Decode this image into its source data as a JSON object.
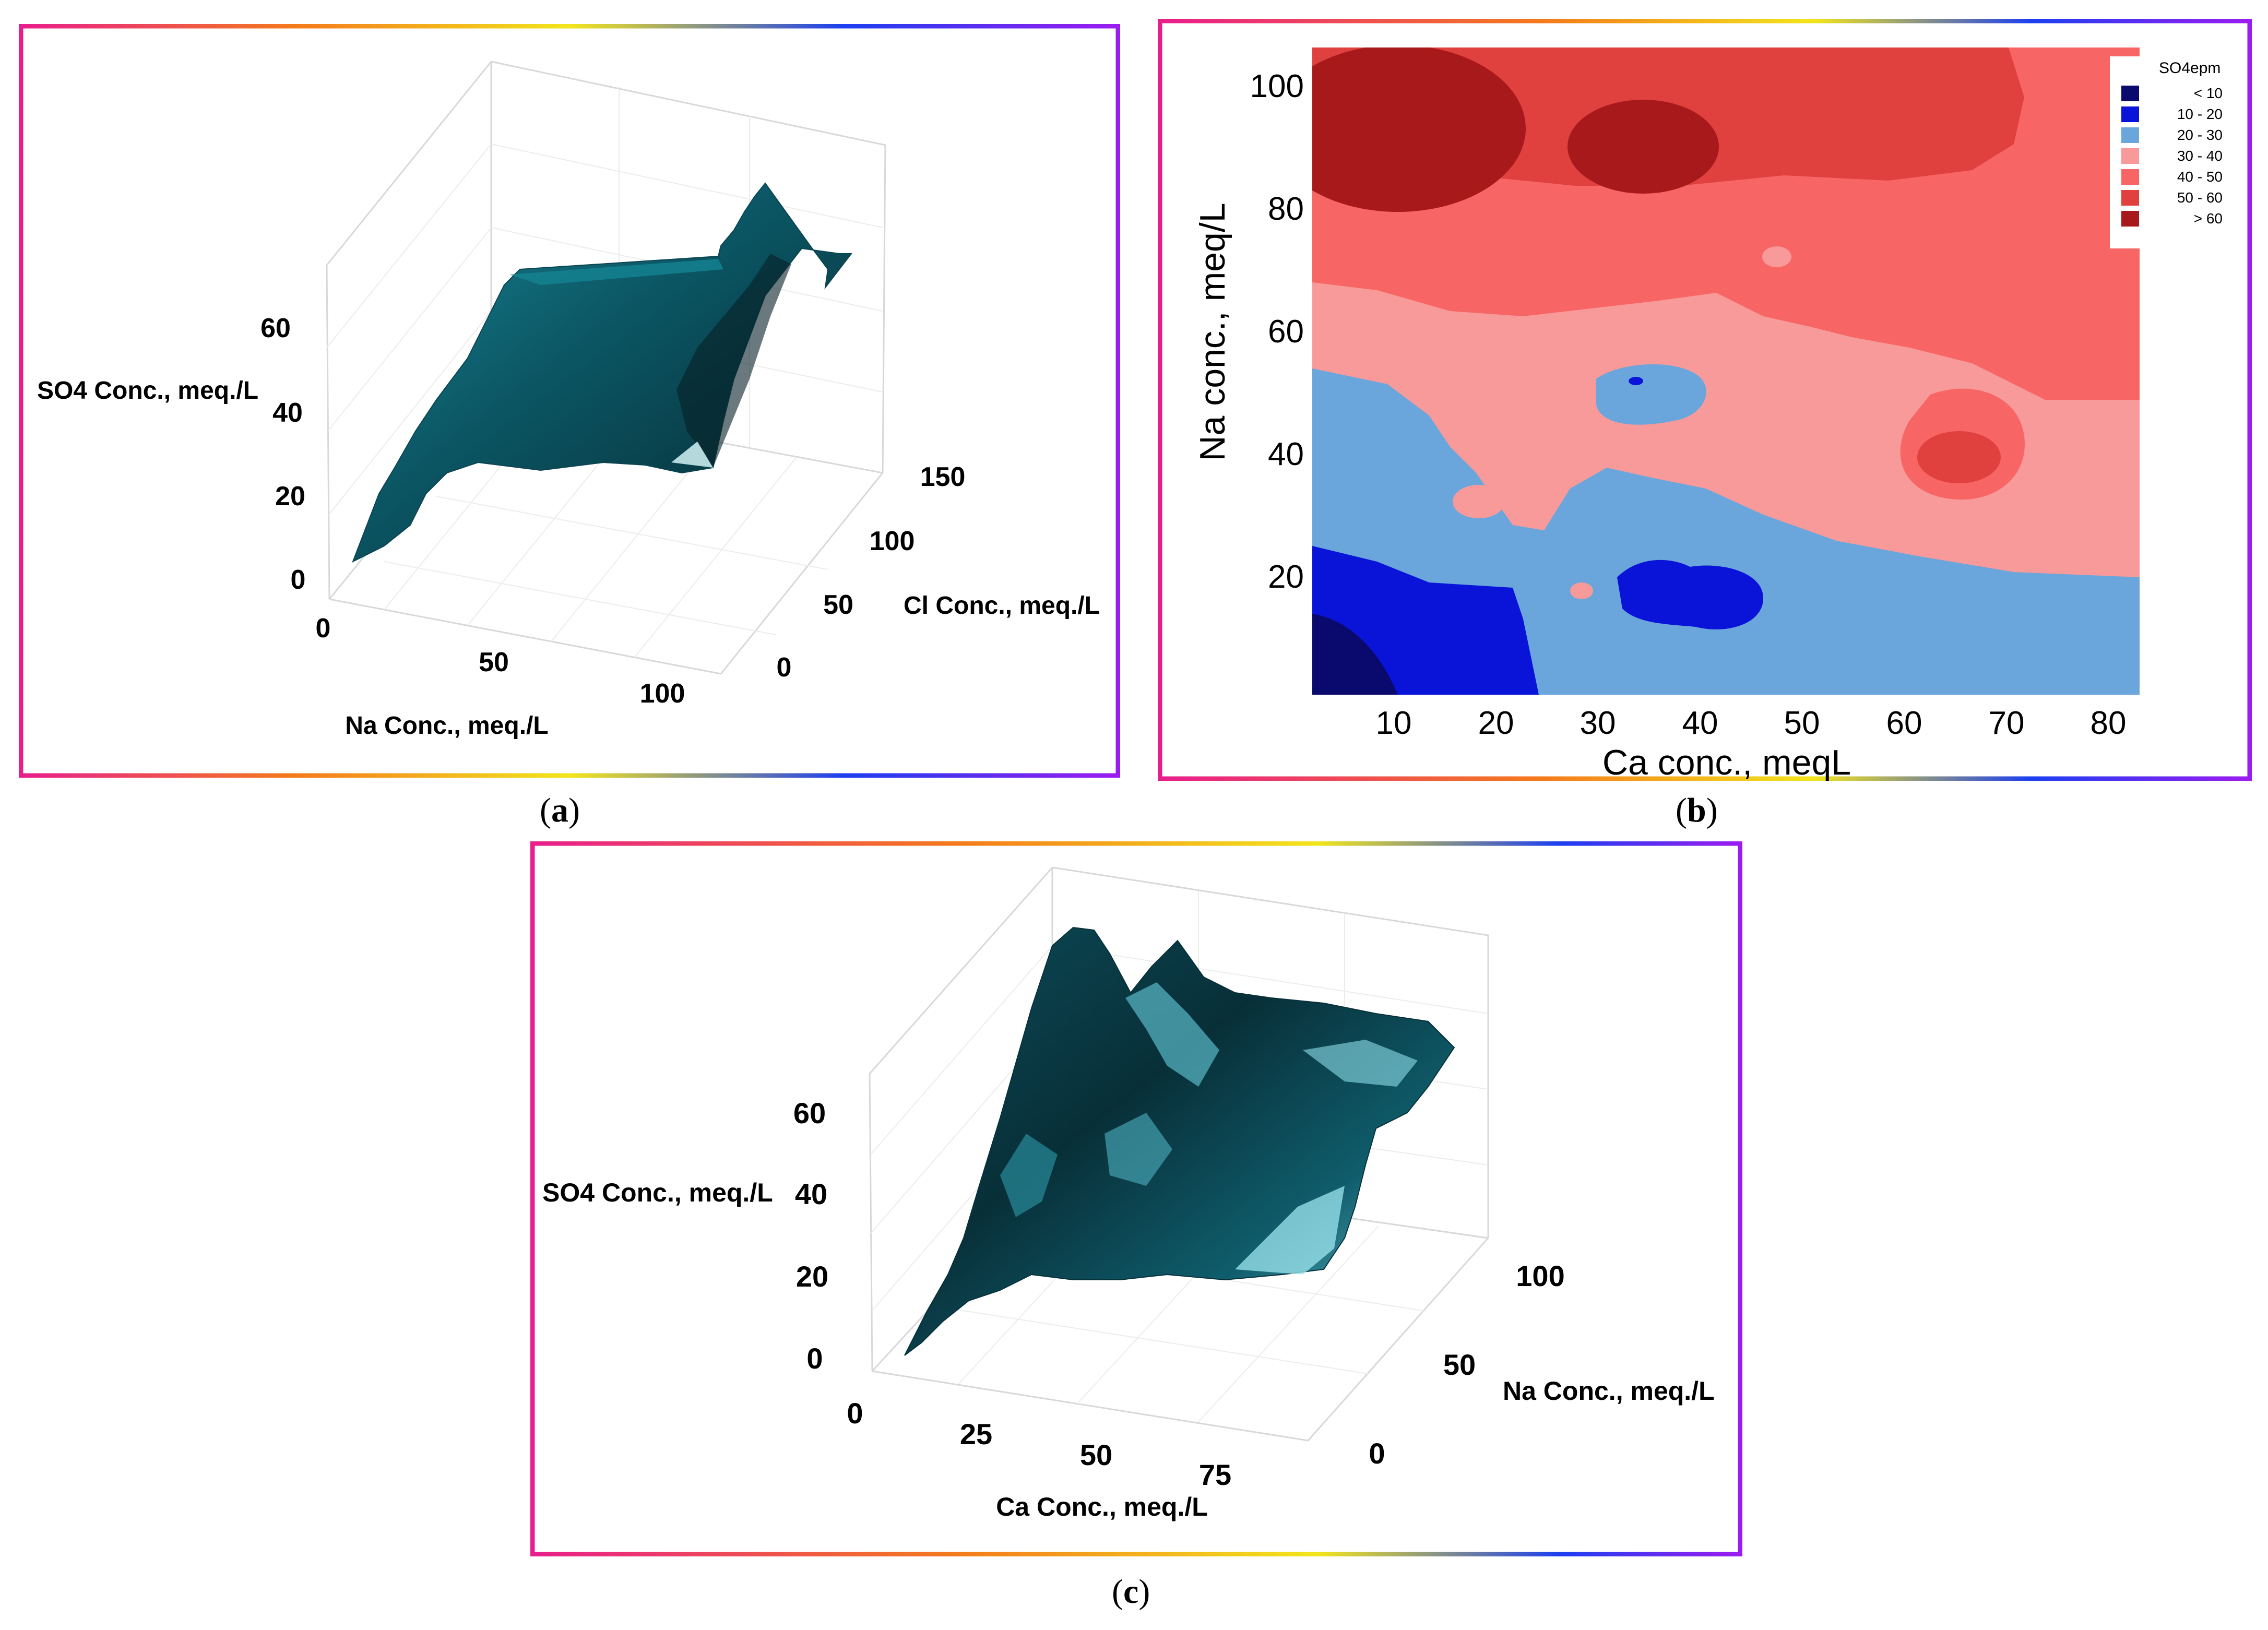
{
  "chart_data": [
    {
      "type": "surface",
      "id": "a",
      "x_axis": {
        "label": "Na Conc., meq./L",
        "ticks": [
          0,
          50,
          100
        ]
      },
      "y_axis": {
        "label": "Cl Conc., meq./L",
        "ticks": [
          0,
          50,
          100,
          150
        ]
      },
      "z_axis": {
        "label": "SO4 Conc., meq./L",
        "ticks": [
          0,
          20,
          40,
          60
        ]
      },
      "surface_color": "#0f6f7e"
    },
    {
      "type": "contour",
      "id": "b",
      "xlabel": "Ca conc., meqL",
      "ylabel": "Na conc., meq/L",
      "xticks": [
        10,
        20,
        30,
        40,
        50,
        60,
        70,
        80
      ],
      "yticks": [
        20,
        40,
        60,
        80,
        100
      ],
      "xlim": [
        2,
        83
      ],
      "ylim": [
        0,
        103
      ],
      "legend": {
        "title": "SO4epm",
        "position": "top-right",
        "entries": [
          {
            "label": "< 10",
            "color": "#0a0a6e"
          },
          {
            "label": "10 - 20",
            "color": "#0a14d8"
          },
          {
            "label": "20 - 30",
            "color": "#6aa6dc"
          },
          {
            "label": "30 - 40",
            "color": "#f99a9a"
          },
          {
            "label": "40 - 50",
            "color": "#f76565"
          },
          {
            "label": "50 - 60",
            "color": "#e0413f"
          },
          {
            "label": "> 60",
            "color": "#a8191c"
          }
        ]
      }
    },
    {
      "type": "surface",
      "id": "c",
      "x_axis": {
        "label": "Ca Conc., meq./L",
        "ticks": [
          0,
          25,
          50,
          75
        ]
      },
      "y_axis": {
        "label": "Na Conc., meq./L",
        "ticks": [
          0,
          50,
          100
        ]
      },
      "z_axis": {
        "label": "SO4 Conc., meq./L",
        "ticks": [
          0,
          20,
          40,
          60
        ]
      },
      "surface_color": "#0f5d6c"
    }
  ],
  "captions": {
    "a": "a",
    "b": "b",
    "c": "c"
  }
}
